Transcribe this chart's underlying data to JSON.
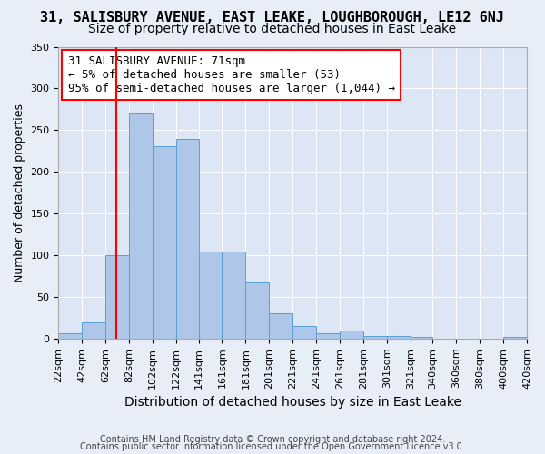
{
  "title1": "31, SALISBURY AVENUE, EAST LEAKE, LOUGHBOROUGH, LE12 6NJ",
  "title2": "Size of property relative to detached houses in East Leake",
  "xlabel": "Distribution of detached houses by size in East Leake",
  "ylabel": "Number of detached properties",
  "annotation_title": "31 SALISBURY AVENUE: 71sqm",
  "annotation_line1": "← 5% of detached houses are smaller (53)",
  "annotation_line2": "95% of semi-detached houses are larger (1,044) →",
  "footer1": "Contains HM Land Registry data © Crown copyright and database right 2024.",
  "footer2": "Contains public sector information licensed under the Open Government Licence v3.0.",
  "bin_labels": [
    "22sqm",
    "42sqm",
    "62sqm",
    "82sqm",
    "102sqm",
    "122sqm",
    "141sqm",
    "161sqm",
    "181sqm",
    "201sqm",
    "221sqm",
    "241sqm",
    "261sqm",
    "281sqm",
    "301sqm",
    "321sqm",
    "340sqm",
    "360sqm",
    "380sqm",
    "400sqm",
    "420sqm"
  ],
  "bar_values": [
    7,
    19,
    100,
    271,
    231,
    240,
    105,
    105,
    67,
    30,
    15,
    7,
    10,
    3,
    3,
    2,
    0,
    0,
    0,
    2
  ],
  "bar_color": "#aec6e8",
  "bar_edge_color": "#5a9fd4",
  "red_line_x": 71,
  "ylim": [
    0,
    350
  ],
  "yticks": [
    0,
    50,
    100,
    150,
    200,
    250,
    300,
    350
  ],
  "background_color": "#e8eef8",
  "plot_bg_color": "#dce6f4",
  "grid_color": "#ffffff",
  "title1_fontsize": 11,
  "title2_fontsize": 10,
  "xlabel_fontsize": 10,
  "ylabel_fontsize": 9,
  "tick_fontsize": 8,
  "annotation_fontsize": 9
}
